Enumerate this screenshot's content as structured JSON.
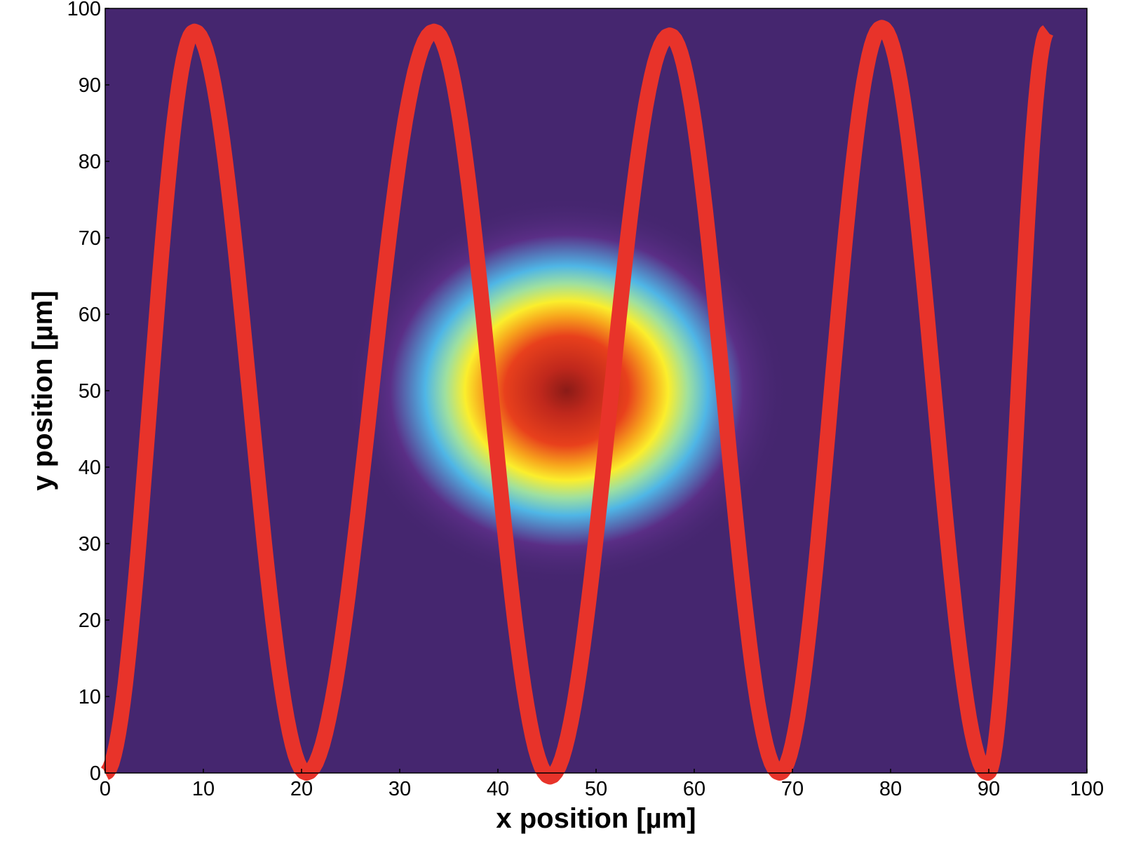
{
  "chart_data": {
    "type": "heatmap",
    "title": "",
    "xlabel": "x position [µm]",
    "ylabel": "y position  [µm]",
    "xlim": [
      0,
      100
    ],
    "ylim": [
      0,
      100
    ],
    "xticks": [
      "0",
      "10",
      "20",
      "30",
      "40",
      "50",
      "60",
      "70",
      "80",
      "90",
      "100"
    ],
    "yticks": [
      "0",
      "10",
      "20",
      "30",
      "40",
      "50",
      "60",
      "70",
      "80",
      "90",
      "100"
    ],
    "grid": false,
    "legend": "none",
    "background_color": "#45266f",
    "heatmap": {
      "description": "Gaussian intensity spot",
      "center": {
        "x": 47,
        "y": 50
      },
      "sigma_x": 7.5,
      "sigma_y": 8.5,
      "colormap": [
        "#45266f",
        "#5a2e86",
        "#4fb6e6",
        "#9ee0a0",
        "#fbee2c",
        "#f7a21c",
        "#e8401c",
        "#c0281c",
        "#8a1b17"
      ]
    },
    "series": [
      {
        "name": "raster scan path",
        "color": "#e8332a",
        "x": [
          0,
          9.1,
          20.5,
          33.5,
          45.3,
          57.5,
          68.7,
          79.1,
          89.9,
          96
        ],
        "y": [
          0,
          97,
          0,
          97,
          -0.5,
          96.5,
          0,
          97.5,
          0,
          97
        ]
      }
    ]
  }
}
